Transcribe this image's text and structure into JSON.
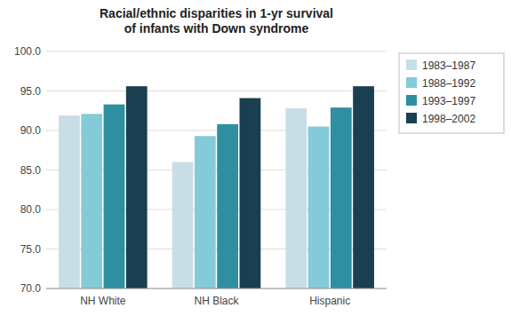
{
  "chart_data": {
    "type": "bar",
    "title": "Racial/ethnic disparities in 1-yr survival\nof infants with Down syndrome",
    "categories": [
      "NH White",
      "NH Black",
      "Hispanic"
    ],
    "series": [
      {
        "name": "1983–1987",
        "color": "#c8dde6",
        "values": [
          91.9,
          86.0,
          92.8
        ]
      },
      {
        "name": "1988–1992",
        "color": "#85cad8",
        "values": [
          92.1,
          89.3,
          90.5
        ]
      },
      {
        "name": "1993–1997",
        "color": "#2e8fa0",
        "values": [
          93.3,
          90.8,
          92.9
        ]
      },
      {
        "name": "1998–2002",
        "color": "#1a3f50",
        "values": [
          95.6,
          94.1,
          95.6
        ]
      }
    ],
    "ylim": [
      70.0,
      100.0
    ],
    "yticks": [
      {
        "value": 70.0,
        "label": "70.0"
      },
      {
        "value": 75.0,
        "label": "75.0"
      },
      {
        "value": 80.0,
        "label": "80.0"
      },
      {
        "value": 85.0,
        "label": "85.0"
      },
      {
        "value": 90.0,
        "label": "90.0"
      },
      {
        "value": 95.0,
        "label": "95.0"
      },
      {
        "value": 100.0,
        "label": "100.0"
      }
    ],
    "grid": true,
    "legend": "right"
  }
}
